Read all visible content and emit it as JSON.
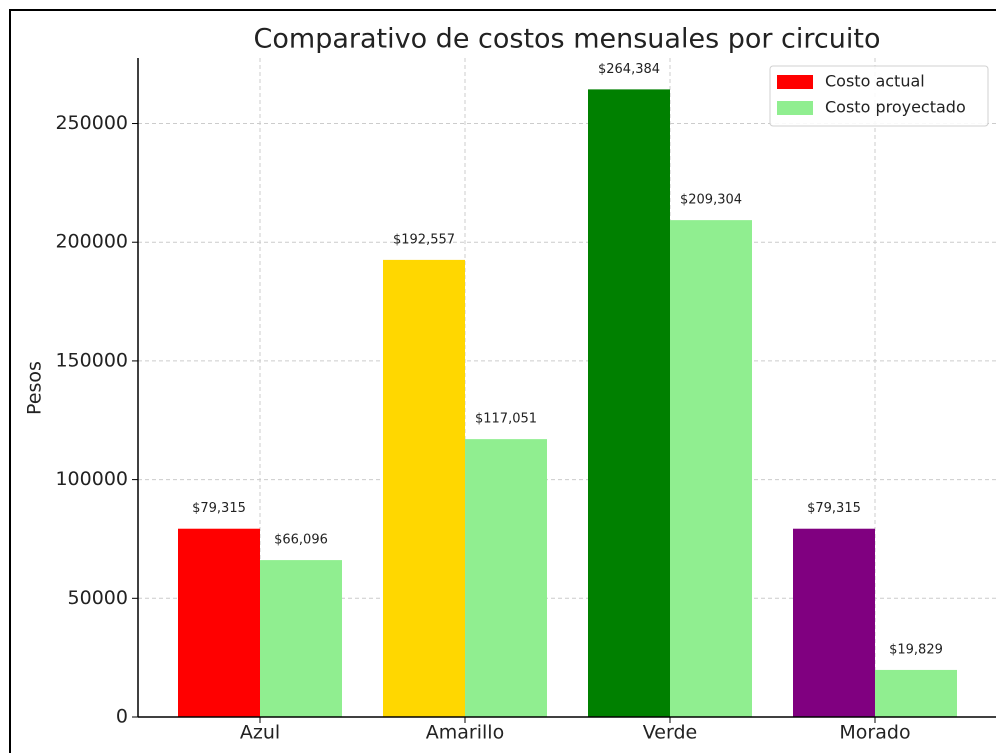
{
  "chart_data": {
    "type": "bar",
    "title": "Comparativo de costos mensuales por circuito",
    "y_label": "Pesos",
    "categories": [
      "Azul",
      "Amarillo",
      "Verde",
      "Morado"
    ],
    "series": [
      {
        "name": "Costo actual",
        "color": "#ff0000",
        "colors": [
          "#ff0000",
          "#ffd700",
          "#008000",
          "#800080"
        ],
        "values": [
          79315,
          192557,
          264384,
          79315
        ],
        "value_labels": [
          "$79,315",
          "$192,557",
          "$264,384",
          "$79,315"
        ]
      },
      {
        "name": "Costo proyectado",
        "color": "#90ee90",
        "values": [
          66096,
          117051,
          209304,
          19829
        ],
        "value_labels": [
          "$66,096",
          "$117,051",
          "$209,304",
          "$19,829"
        ]
      }
    ],
    "ylim": [
      0,
      277603
    ],
    "yticks": [
      0,
      50000,
      100000,
      150000,
      200000,
      250000
    ],
    "grid": true,
    "legend": "upper right"
  }
}
